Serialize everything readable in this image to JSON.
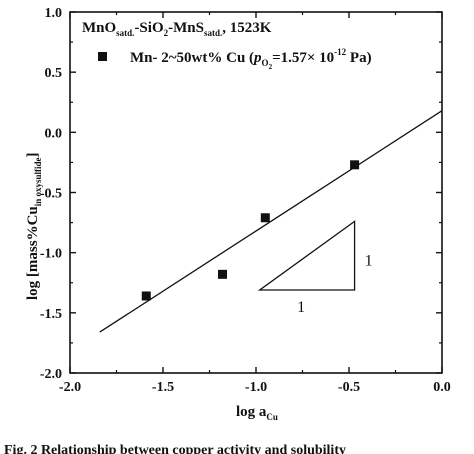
{
  "chart_data": {
    "type": "scatter",
    "header": {
      "system_parts": [
        {
          "t": "MnO",
          "s": "satd."
        },
        {
          "t": "-SiO",
          "s": "2"
        },
        {
          "t": "-MnS",
          "s": "satd."
        }
      ],
      "temperature": ", 1523K"
    },
    "legend": {
      "series_text": "Mn- 2~50wt% Cu (",
      "p_symbol": "p",
      "p_sub": "O",
      "p_subsub": "2",
      "p_value": "=1.57× 10",
      "p_exp": "-12",
      "p_unit": " Pa)",
      "marker": "filled-square",
      "position": "top-left"
    },
    "points": [
      {
        "x": -1.59,
        "y": -1.36
      },
      {
        "x": -1.18,
        "y": -1.18
      },
      {
        "x": -0.95,
        "y": -0.71
      },
      {
        "x": -0.47,
        "y": -0.27
      }
    ],
    "fit_line": {
      "slope": 1.0,
      "intercept": 0.18,
      "x_range": [
        -1.84,
        0.0
      ]
    },
    "slope_triangle": {
      "vertices": [
        [
          -0.98,
          -1.31
        ],
        [
          -0.47,
          -1.31
        ],
        [
          -0.47,
          -0.74
        ]
      ],
      "run_label": "1",
      "rise_label": "1"
    },
    "xlim": [
      -2.0,
      0.0
    ],
    "ylim": [
      -2.0,
      1.0
    ],
    "x_ticks": [
      -2.0,
      -1.5,
      -1.0,
      -0.5,
      0.0
    ],
    "y_ticks": [
      -2.0,
      -1.5,
      -1.0,
      -0.5,
      0.0,
      0.5,
      1.0
    ],
    "x_tick_labels": [
      "-2.0",
      "-1.5",
      "-1.0",
      "-0.5",
      "0.0"
    ],
    "y_tick_labels": [
      "-2.0",
      "-1.5",
      "-1.0",
      "-0.5",
      "0.0",
      "0.5",
      "1.0"
    ],
    "xlabel": {
      "main": "log a",
      "sub": "Cu"
    },
    "ylabel": {
      "main": "log [mass%Cu",
      "sub": "in oxysulfide",
      "close": "]"
    },
    "grid": false
  },
  "caption": {
    "text": "Fig. 2    Relationship between copper activity and solubility"
  }
}
